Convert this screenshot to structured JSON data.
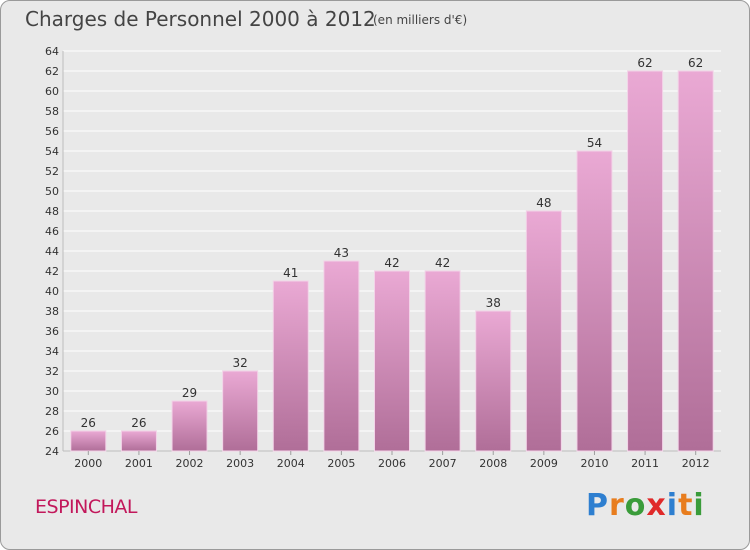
{
  "header": {
    "title": "Charges de Personnel 2000 à 2012",
    "subtitle": "(en milliers d'€)"
  },
  "footer": {
    "place": "ESPINCHAL",
    "logo_text": "Proxiti",
    "logo_colors": [
      "#2e7fd0",
      "#e87d1e",
      "#3a9c3a",
      "#e02a2a",
      "#2e7fd0",
      "#e87d1e",
      "#3a9c3a"
    ]
  },
  "colors": {
    "background": "#e9e9e9",
    "bar_top": "#eaa9d4",
    "bar_bottom": "#b06e98",
    "grid": "#ffffff",
    "axis_text": "#333333"
  },
  "chart_data": {
    "type": "bar",
    "categories": [
      "2000",
      "2001",
      "2002",
      "2003",
      "2004",
      "2005",
      "2006",
      "2007",
      "2008",
      "2009",
      "2010",
      "2011",
      "2012"
    ],
    "values": [
      26,
      26,
      29,
      32,
      41,
      43,
      42,
      42,
      38,
      48,
      54,
      62,
      62
    ],
    "ylim": [
      24,
      64
    ],
    "yticks": [
      24,
      26,
      28,
      30,
      32,
      34,
      36,
      38,
      40,
      42,
      44,
      46,
      48,
      50,
      52,
      54,
      56,
      58,
      60,
      62,
      64
    ],
    "grid": true,
    "data_labels": true
  }
}
